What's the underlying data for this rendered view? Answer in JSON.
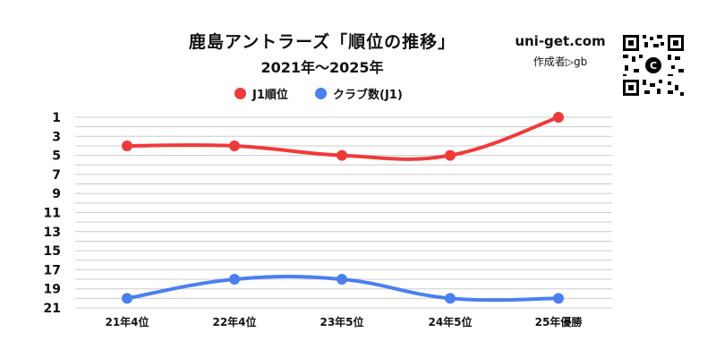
{
  "header": {
    "title": "鹿島アントラーズ「順位の推移」",
    "subtitle": "2021年〜2025年",
    "site": "uni-get.com",
    "author": "作成者▷gb"
  },
  "colors": {
    "rank": "#f03a3a",
    "clubs": "#4a7ff0",
    "grid": "#cccccc"
  },
  "icons": {
    "qr": "qr-code-icon"
  },
  "chart_data": {
    "type": "line",
    "title": "鹿島アントラーズ「順位の推移」",
    "subtitle": "2021年〜2025年",
    "categories": [
      "21年4位",
      "22年4位",
      "23年5位",
      "24年5位",
      "25年優勝"
    ],
    "series": [
      {
        "name": "J1順位",
        "values": [
          4,
          4,
          5,
          5,
          1
        ],
        "color": "#f03a3a"
      },
      {
        "name": "クラブ数(J1)",
        "values": [
          20,
          18,
          18,
          20,
          20
        ],
        "color": "#4a7ff0"
      }
    ],
    "y_axis": {
      "reversed": true,
      "min": 1,
      "max": 21,
      "ticks": [
        1,
        3,
        5,
        7,
        9,
        11,
        13,
        15,
        17,
        19,
        21
      ]
    },
    "grid": true,
    "legend": "top-center"
  }
}
